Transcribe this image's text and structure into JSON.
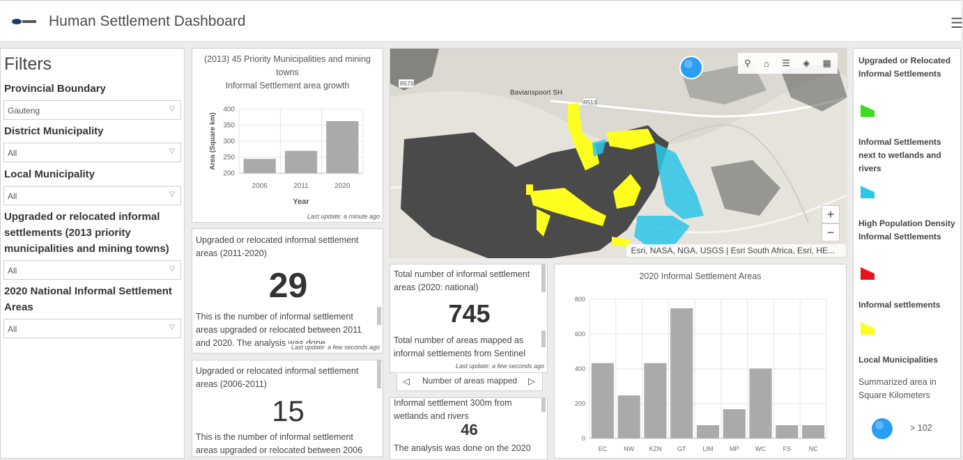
{
  "header": {
    "title": "Human Settlement Dashboard"
  },
  "filters": {
    "title": "Filters",
    "items": [
      {
        "label": "Provincial Boundary",
        "value": "Gauteng"
      },
      {
        "label": "District Municipality",
        "value": "All"
      },
      {
        "label": "Local Municipality",
        "value": "All"
      },
      {
        "label": "Upgraded or relocated informal settlements (2013 priority municipalities and mining towns)",
        "value": "All"
      },
      {
        "label": "2020 National Informal Settlement Areas",
        "value": "All"
      }
    ]
  },
  "growth_chart": {
    "title_line1": "(2013) 45 Priority Municipalities and mining",
    "title_line2": "towns",
    "title_line3": "Informal Settlement area growth",
    "last_update": "Last update: a minute ago"
  },
  "card_2011": {
    "title": "Upgraded or relocated  informal settlement areas (2011-2020)",
    "value": "29",
    "desc": "This is the number of informal settlement areas upgraded or relocated between 2011 and 2020. The analysis was done",
    "last_update": "Last update: a few seconds ago"
  },
  "card_2006": {
    "title": "Upgraded or relocated  informal settlement areas (2006-2011)",
    "value": "15",
    "desc": "This is the number of informal settlement areas upgraded or relocated between 2006"
  },
  "card_total": {
    "title": "Total number of informal settlement areas (2020: national)",
    "value": "745",
    "desc": "Total number of areas mapped as informal settlements from Sentinel",
    "last_update": "Last update: a few seconds ago",
    "nav_label": "Number of areas mapped"
  },
  "card_wetlands": {
    "title": "Informal settlement 300m from wetlands and rivers",
    "value": "46",
    "desc": "The analysis was done on the 2020"
  },
  "map": {
    "attribution": "Esri, NASA, NGA, USGS | Esri South Africa, Esri, HE...",
    "labels": [
      "R573",
      "Bavianspoort SH",
      "R513"
    ],
    "zoom_in": "+",
    "zoom_out": "−"
  },
  "legend": {
    "items": [
      {
        "label": "Upgraded or Relocated Informal Settlements",
        "color": "#3ddc1e"
      },
      {
        "label": "Informal Settlements next to wetlands and rivers",
        "color": "#2bc6e8"
      },
      {
        "label": "High Population Density Informal Settlements",
        "color": "#e8131f"
      },
      {
        "label": "Informal settlements",
        "color": "#ffff1f"
      }
    ],
    "local_title": "Local Municipalities",
    "summary": "Summarized area in Square Kilometers",
    "circle_label": "> 102"
  },
  "chart_data": [
    {
      "type": "bar",
      "title": "(2013) 45 Priority Municipalities and mining towns Informal Settlement area growth",
      "categories": [
        "2006",
        "2011",
        "2020"
      ],
      "values": [
        245,
        270,
        363
      ],
      "xlabel": "Year",
      "ylabel": "Area (Square km)",
      "ylim": [
        200,
        400
      ],
      "yticks": [
        200,
        250,
        300,
        350,
        400
      ],
      "color": "#aaaaaa"
    },
    {
      "type": "bar",
      "title": "2020 Informal Settlement Areas",
      "categories": [
        "EC",
        "NW",
        "KZN",
        "GT",
        "LIM",
        "MP",
        "WC",
        "FS",
        "NC"
      ],
      "values": [
        433,
        247,
        433,
        748,
        76,
        168,
        402,
        76,
        76
      ],
      "xlabel": "",
      "ylabel": "",
      "ylim": [
        0,
        800
      ],
      "yticks": [
        0,
        200,
        400,
        600,
        800
      ],
      "color": "#aaaaaa"
    }
  ]
}
